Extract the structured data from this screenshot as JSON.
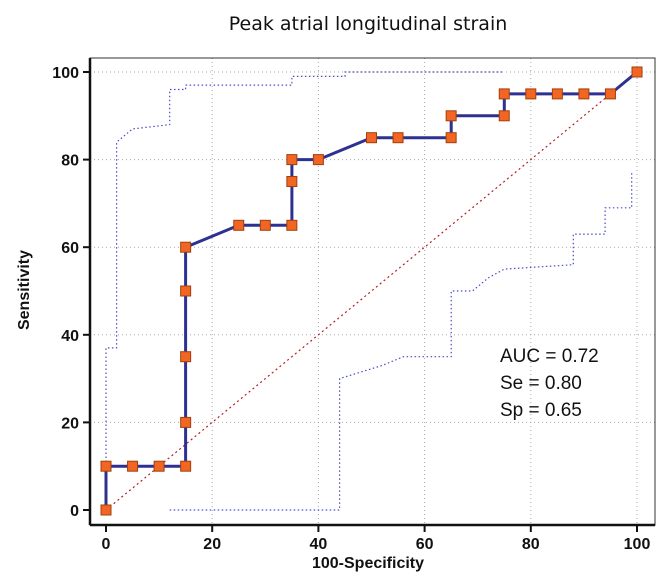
{
  "chart_data": {
    "type": "line",
    "title": "Peak atrial longitudinal strain",
    "xlabel": "100-Specificity",
    "ylabel": "Sensitivity",
    "xlim": [
      0,
      100
    ],
    "ylim": [
      0,
      100
    ],
    "xticks": [
      "0",
      "20",
      "40",
      "60",
      "80",
      "100"
    ],
    "yticks": [
      "0",
      "20",
      "40",
      "60",
      "80",
      "100"
    ],
    "grid": true,
    "colors": {
      "roc": "#2E3192",
      "marker_fill": "#F26522",
      "marker_stroke": "#A0410D",
      "diagonal": "#B22222",
      "ci": "#4B4BC8",
      "grid": "#A8A8A8"
    },
    "roc_points": [
      [
        0,
        0
      ],
      [
        0,
        10
      ],
      [
        5,
        10
      ],
      [
        10,
        10
      ],
      [
        15,
        10
      ],
      [
        15,
        20
      ],
      [
        15,
        35
      ],
      [
        15,
        50
      ],
      [
        15,
        60
      ],
      [
        25,
        65
      ],
      [
        30,
        65
      ],
      [
        35,
        65
      ],
      [
        35,
        75
      ],
      [
        35,
        80
      ],
      [
        40,
        80
      ],
      [
        50,
        85
      ],
      [
        55,
        85
      ],
      [
        65,
        85
      ],
      [
        65,
        90
      ],
      [
        75,
        90
      ],
      [
        75,
        95
      ],
      [
        80,
        95
      ],
      [
        85,
        95
      ],
      [
        90,
        95
      ],
      [
        95,
        95
      ],
      [
        100,
        100
      ]
    ],
    "diagonal": [
      [
        0,
        0
      ],
      [
        100,
        100
      ]
    ],
    "ci_upper": [
      [
        0,
        0
      ],
      [
        0,
        37
      ],
      [
        2,
        37
      ],
      [
        2,
        84
      ],
      [
        5,
        87
      ],
      [
        12,
        88
      ],
      [
        12,
        96
      ],
      [
        15,
        96
      ],
      [
        15,
        97
      ],
      [
        20,
        97
      ],
      [
        35,
        97
      ],
      [
        35,
        99
      ],
      [
        45,
        99
      ],
      [
        45,
        100
      ],
      [
        75,
        100
      ]
    ],
    "ci_lower": [
      [
        12,
        0
      ],
      [
        44,
        0
      ],
      [
        44,
        30
      ],
      [
        52,
        33
      ],
      [
        56,
        35
      ],
      [
        65,
        35
      ],
      [
        65,
        50
      ],
      [
        69,
        50
      ],
      [
        72,
        53
      ],
      [
        75,
        55
      ],
      [
        88,
        56
      ],
      [
        88,
        63
      ],
      [
        94,
        63
      ],
      [
        94,
        69
      ],
      [
        99,
        69
      ],
      [
        99,
        77
      ]
    ],
    "annotations": {
      "auc": "AUC = 0.72",
      "se": "Se = 0.80",
      "sp": "Sp = 0.65"
    }
  }
}
